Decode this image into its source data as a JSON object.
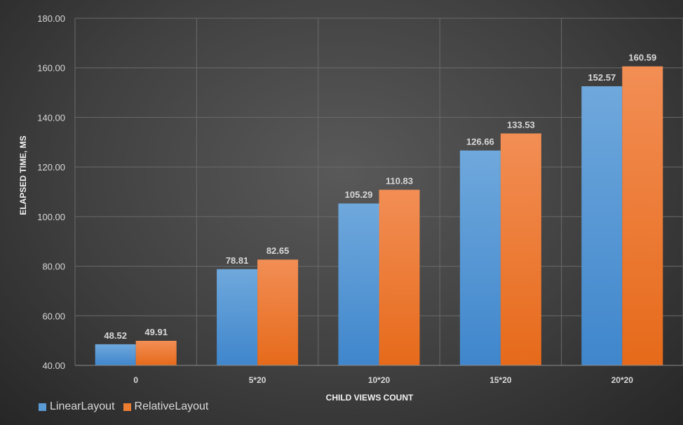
{
  "chart_data": {
    "type": "bar",
    "categories": [
      "0",
      "5*20",
      "10*20",
      "15*20",
      "20*20"
    ],
    "series": [
      {
        "name": "LinearLayout",
        "color": "#5b9bd5",
        "values": [
          48.52,
          78.81,
          105.29,
          126.66,
          152.57
        ],
        "labels": [
          "48.52",
          "78.81",
          "105.29",
          "126.66",
          "152.57"
        ]
      },
      {
        "name": "RelativeLayout",
        "color": "#ed7d31",
        "values": [
          49.91,
          82.65,
          110.83,
          133.53,
          160.59
        ],
        "labels": [
          "49.91",
          "82.65",
          "110.83",
          "133.53",
          "160.59"
        ]
      }
    ],
    "xlabel": "CHILD VIEWS COUNT",
    "ylabel": "ELAPSED TIME, MS",
    "ylim": [
      40,
      180
    ],
    "yticks": [
      40,
      60,
      80,
      100,
      120,
      140,
      160,
      180
    ],
    "ytick_labels": [
      "40.00",
      "60.00",
      "80.00",
      "100.00",
      "120.00",
      "140.00",
      "160.00",
      "180.00"
    ],
    "grid": true,
    "legend_position": "bottom-left"
  }
}
